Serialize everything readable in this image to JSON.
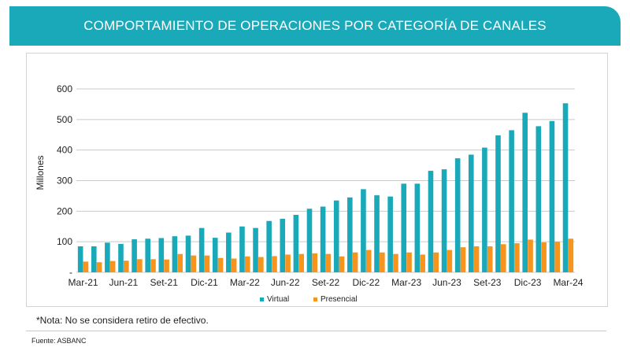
{
  "header": {
    "title": "COMPORTAMIENTO DE OPERACIONES POR CATEGORÍA DE CANALES"
  },
  "colors": {
    "banner": "#1aa9b9",
    "virtual": "#1aa9b9",
    "presencial": "#f7941d"
  },
  "note": "*Nota: No se considera retiro de efectivo.",
  "source": "Fuente: ASBANC",
  "chart_data": {
    "type": "bar",
    "title": "COMPORTAMIENTO DE OPERACIONES POR CATEGORÍA DE CANALES",
    "ylabel": "Millones",
    "xlabel": "",
    "ylim": [
      0,
      600
    ],
    "yticks": [
      0,
      100,
      200,
      300,
      400,
      500,
      600
    ],
    "ytick_labels": [
      "-",
      "100",
      "200",
      "300",
      "400",
      "500",
      "600"
    ],
    "categories": [
      "Mar-21",
      "Abr-21",
      "May-21",
      "Jun-21",
      "Jul-21",
      "Ago-21",
      "Set-21",
      "Oct-21",
      "Nov-21",
      "Dic-21",
      "Ene-22",
      "Feb-22",
      "Mar-22",
      "Abr-22",
      "May-22",
      "Jun-22",
      "Jul-22",
      "Ago-22",
      "Set-22",
      "Oct-22",
      "Nov-22",
      "Dic-22",
      "Ene-23",
      "Feb-23",
      "Mar-23",
      "Abr-23",
      "May-23",
      "Jun-23",
      "Jul-23",
      "Ago-23",
      "Set-23",
      "Oct-23",
      "Nov-23",
      "Dic-23",
      "Ene-24",
      "Feb-24",
      "Mar-24"
    ],
    "xtick_labels": [
      "Mar-21",
      "Jun-21",
      "Set-21",
      "Dic-21",
      "Mar-22",
      "Jun-22",
      "Set-22",
      "Dic-22",
      "Mar-23",
      "Jun-23",
      "Set-23",
      "Dic-23",
      "Mar-24"
    ],
    "series": [
      {
        "name": "Virtual",
        "color": "#1aa9b9",
        "values": [
          85,
          85,
          97,
          93,
          108,
          110,
          112,
          118,
          120,
          145,
          113,
          130,
          150,
          145,
          168,
          175,
          188,
          208,
          215,
          235,
          245,
          272,
          252,
          248,
          290,
          290,
          332,
          337,
          373,
          385,
          408,
          448,
          465,
          522,
          478,
          495,
          553
        ]
      },
      {
        "name": "Presencial",
        "color": "#f7941d",
        "values": [
          35,
          33,
          37,
          38,
          43,
          43,
          42,
          60,
          55,
          55,
          47,
          45,
          52,
          50,
          53,
          58,
          60,
          62,
          60,
          52,
          65,
          73,
          65,
          60,
          65,
          58,
          65,
          73,
          82,
          85,
          85,
          92,
          95,
          107,
          98,
          100,
          110
        ]
      }
    ],
    "legend": {
      "position": "bottom",
      "entries": [
        "Virtual",
        "Presencial"
      ]
    },
    "grid": true
  }
}
